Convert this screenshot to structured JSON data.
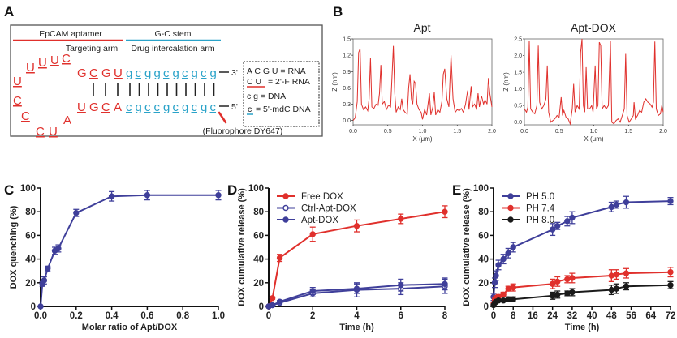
{
  "panel_labels": [
    "A",
    "B",
    "C",
    "D",
    "E"
  ],
  "panel_a": {
    "header_left": "EpCAM aptamer",
    "header_right": "G-C stem",
    "sub_left": "Targeting arm",
    "sub_right": "Drug intercalation arm",
    "loop_letters": [
      "U",
      "U",
      "U",
      "C",
      "U",
      "C",
      "C",
      "C",
      "U",
      "A"
    ],
    "top_stem_red": [
      "G",
      "C",
      "G",
      "U"
    ],
    "top_stem_blue": [
      "g",
      "c",
      "g",
      "g",
      "c",
      "g",
      "c",
      "g",
      "c",
      "g"
    ],
    "bottom_stem_red": [
      "U",
      "G",
      "C",
      "A"
    ],
    "bottom_stem_blue": [
      "c",
      "g",
      "c",
      "c",
      "g",
      "c",
      "g",
      "c",
      "g",
      "c"
    ],
    "end_top": "3'",
    "end_bottom": "5'",
    "fluorophore": "(Fluorophore DY647)",
    "legend": {
      "rna": "A C G U = RNA",
      "fprna_key": "C U",
      "fprna": "= 2'-F RNA",
      "dna": "c g = DNA",
      "mdc_key": "c",
      "mdc": "= 5'-mdC DNA"
    },
    "colors": {
      "rna": "#e0302c",
      "dna": "#2aa3c9"
    }
  },
  "chart_data": [
    {
      "id": "B-Apt",
      "type": "line",
      "title": "Apt",
      "xlabel": "X (μm)",
      "ylabel": "Z (nm)",
      "xlim": [
        0,
        2
      ],
      "ylim": [
        -0.08,
        1.5
      ],
      "xticks": [
        "0.0",
        "0.5",
        "1.0",
        "1.5",
        "2.0"
      ],
      "yticks": [
        "0.0",
        "0.3",
        "0.6",
        "0.9",
        "1.2",
        "1.5"
      ],
      "color": "#e0302c",
      "x": [
        0,
        0.03,
        0.06,
        0.08,
        0.1,
        0.12,
        0.15,
        0.18,
        0.21,
        0.23,
        0.25,
        0.27,
        0.3,
        0.33,
        0.36,
        0.38,
        0.4,
        0.42,
        0.45,
        0.48,
        0.51,
        0.54,
        0.56,
        0.58,
        0.6,
        0.62,
        0.65,
        0.68,
        0.7,
        0.72,
        0.75,
        0.78,
        0.8,
        0.82,
        0.84,
        0.86,
        0.88,
        0.9,
        0.92,
        0.95,
        0.98,
        1.0,
        1.03,
        1.06,
        1.08,
        1.1,
        1.12,
        1.15,
        1.17,
        1.19,
        1.22,
        1.25,
        1.28,
        1.3,
        1.32,
        1.35,
        1.38,
        1.41,
        1.44,
        1.47,
        1.5,
        1.53,
        1.56,
        1.59,
        1.62,
        1.65,
        1.67,
        1.7,
        1.72,
        1.75,
        1.78,
        1.8,
        1.82,
        1.85,
        1.88,
        1.9,
        1.93,
        1.95,
        1.97,
        2.0
      ],
      "y": [
        0,
        0.05,
        0.35,
        1.25,
        1.32,
        0.3,
        0.2,
        0.25,
        0.18,
        0.4,
        1.15,
        0.25,
        0.22,
        0.3,
        0.28,
        0.5,
        1.02,
        0.3,
        0.35,
        0.2,
        0.28,
        0.25,
        0.8,
        1.37,
        0.5,
        0.15,
        0.25,
        0.2,
        0.4,
        0.2,
        0.15,
        0.12,
        0.6,
        0.85,
        0.4,
        0.3,
        0.72,
        0.68,
        0.3,
        0.2,
        0.15,
        0.02,
        0.2,
        0.1,
        0.3,
        0.5,
        0.1,
        0.25,
        0.52,
        0.1,
        0.2,
        0.15,
        0.35,
        0.85,
        0.95,
        0.4,
        0.25,
        1.2,
        0.4,
        0.15,
        0.2,
        0.18,
        0.22,
        0.15,
        0.3,
        0.55,
        0.2,
        0.63,
        0.25,
        0.3,
        0.2,
        0.5,
        0.25,
        0.45,
        0.3,
        0.38,
        0.3,
        0.78,
        0.5,
        0.25
      ]
    },
    {
      "id": "B-AptDOX",
      "type": "line",
      "title": "Apt-DOX",
      "xlabel": "X (μm)",
      "ylabel": "Z (nm)",
      "xlim": [
        0,
        2
      ],
      "ylim": [
        -0.08,
        2.5
      ],
      "xticks": [
        "0.0",
        "0.5",
        "1.0",
        "1.5",
        "2.0"
      ],
      "yticks": [
        "0.0",
        "0.5",
        "1.0",
        "1.5",
        "2.0",
        "2.5"
      ],
      "color": "#e0302c",
      "x": [
        0,
        0.03,
        0.05,
        0.07,
        0.09,
        0.12,
        0.15,
        0.18,
        0.2,
        0.22,
        0.25,
        0.28,
        0.31,
        0.33,
        0.35,
        0.38,
        0.41,
        0.44,
        0.47,
        0.5,
        0.53,
        0.55,
        0.57,
        0.6,
        0.63,
        0.66,
        0.69,
        0.71,
        0.73,
        0.76,
        0.79,
        0.81,
        0.83,
        0.85,
        0.87,
        0.89,
        0.91,
        0.94,
        0.97,
        0.99,
        1.02,
        1.04,
        1.06,
        1.08,
        1.1,
        1.12,
        1.15,
        1.18,
        1.21,
        1.24,
        1.26,
        1.29,
        1.32,
        1.35,
        1.38,
        1.41,
        1.44,
        1.46,
        1.48,
        1.51,
        1.54,
        1.57,
        1.58,
        1.6,
        1.63,
        1.66,
        1.69,
        1.72,
        1.75,
        1.78,
        1.81,
        1.84,
        1.86,
        1.88,
        1.9,
        1.93,
        1.96,
        1.98,
        2.0
      ],
      "y": [
        0.4,
        0.3,
        0.45,
        2.45,
        0.4,
        0.3,
        0.25,
        0.5,
        2.3,
        0.6,
        0.4,
        0.5,
        0.7,
        1.7,
        0.3,
        0,
        0.05,
        0.1,
        0.2,
        0.15,
        0.75,
        0.2,
        0.35,
        0.15,
        0.1,
        -0.05,
        0.4,
        1.15,
        0.3,
        0.5,
        0.4,
        2.1,
        2.5,
        0.5,
        0.3,
        1.65,
        0.4,
        0.4,
        0.5,
        0.3,
        1.7,
        0.4,
        0.5,
        2.4,
        2.3,
        0.4,
        0.5,
        0.4,
        0.5,
        2.45,
        0,
        -0.05,
        0.05,
        0.1,
        0,
        0.2,
        0.4,
        2.05,
        0.2,
        0,
        0.1,
        0.2,
        0.6,
        0.1,
        0.2,
        0.35,
        0.3,
        0.6,
        0.7,
        0.6,
        0.55,
        0.45,
        0.6,
        2.42,
        0.4,
        0.2,
        0.25,
        0.5,
        0.3
      ]
    },
    {
      "id": "C",
      "type": "line",
      "xlabel": "Molar ratio of Apt/DOX",
      "ylabel": "DOX quenching (%)",
      "xlim": [
        0,
        1
      ],
      "ylim": [
        0,
        100
      ],
      "xticks": [
        "0.0",
        "0.2",
        "0.4",
        "0.6",
        "0.8",
        "1.0"
      ],
      "yticks": [
        "0",
        "20",
        "40",
        "60",
        "80",
        "100"
      ],
      "series": [
        {
          "name": "Apt/DOX",
          "color": "#3f3f9a",
          "marker": "filled",
          "x": [
            0,
            0.01,
            0.02,
            0.04,
            0.08,
            0.1,
            0.2,
            0.4,
            0.6,
            1.0
          ],
          "y": [
            0,
            19,
            22,
            32,
            47,
            49,
            79,
            93,
            94,
            94
          ],
          "err": [
            0,
            2,
            3,
            2,
            3,
            3,
            3,
            4,
            4,
            4
          ]
        }
      ]
    },
    {
      "id": "D",
      "type": "line",
      "xlabel": "Time (h)",
      "ylabel": "DOX cumulative release (%)",
      "xlim": [
        0,
        8
      ],
      "ylim": [
        0,
        100
      ],
      "legend": "top-left",
      "xticks": [
        "0",
        "2",
        "4",
        "6",
        "8"
      ],
      "yticks": [
        "0",
        "20",
        "40",
        "60",
        "80",
        "100"
      ],
      "series": [
        {
          "name": "Free DOX",
          "color": "#e0302c",
          "marker": "filled",
          "x": [
            0,
            0.17,
            0.5,
            2,
            4,
            6,
            8
          ],
          "y": [
            0,
            7,
            41,
            61,
            68,
            74,
            80
          ],
          "err": [
            0,
            1,
            3,
            6,
            5,
            4,
            5
          ]
        },
        {
          "name": "Ctrl-Apt-DOX",
          "color": "#3f3f9a",
          "marker": "open",
          "x": [
            0,
            0.17,
            0.5,
            2,
            4,
            6,
            8
          ],
          "y": [
            0,
            1,
            3,
            11,
            14,
            15,
            17
          ],
          "err": [
            0,
            1,
            1,
            3,
            6,
            5,
            6
          ]
        },
        {
          "name": "Apt-DOX",
          "color": "#3f3f9a",
          "marker": "filled",
          "x": [
            0,
            0.17,
            0.5,
            2,
            4,
            6,
            8
          ],
          "y": [
            0,
            1,
            4,
            13,
            15,
            18,
            19
          ],
          "err": [
            0,
            1,
            1,
            3,
            4,
            5,
            5
          ]
        }
      ]
    },
    {
      "id": "E",
      "type": "line",
      "xlabel": "Time (h)",
      "ylabel": "DOX cumulative release (%)",
      "xlim": [
        0,
        72
      ],
      "ylim": [
        0,
        100
      ],
      "legend": "top-left",
      "xticks": [
        "0",
        "8",
        "16",
        "24",
        "32",
        "40",
        "48",
        "56",
        "64",
        "72"
      ],
      "yticks": [
        "0",
        "20",
        "40",
        "60",
        "80",
        "100"
      ],
      "series": [
        {
          "name": "PH 5.0",
          "color": "#3f3f9a",
          "marker": "filled",
          "x": [
            0,
            0.5,
            1,
            2,
            4,
            6,
            8,
            24,
            26,
            30,
            32,
            48,
            50,
            54,
            72
          ],
          "y": [
            8,
            20,
            26,
            35,
            40,
            45,
            50,
            65,
            68,
            72,
            75,
            84,
            86,
            88,
            89
          ],
          "err": [
            3,
            4,
            4,
            4,
            4,
            4,
            4,
            5,
            3,
            4,
            5,
            4,
            3,
            5,
            3
          ]
        },
        {
          "name": "PH 7.4",
          "color": "#e0302c",
          "marker": "filled",
          "x": [
            0,
            0.5,
            1,
            2,
            4,
            6,
            8,
            24,
            26,
            30,
            32,
            48,
            50,
            54,
            72
          ],
          "y": [
            2,
            5,
            7,
            8,
            10,
            15,
            16,
            19,
            21,
            23,
            24,
            26,
            27,
            28,
            29
          ],
          "err": [
            1,
            2,
            2,
            2,
            2,
            2,
            3,
            4,
            4,
            3,
            4,
            5,
            4,
            4,
            4
          ]
        },
        {
          "name": "PH 8.0",
          "color": "#1a1a1a",
          "marker": "filled",
          "x": [
            0,
            0.5,
            1,
            2,
            4,
            6,
            8,
            24,
            26,
            30,
            32,
            48,
            50,
            54,
            72
          ],
          "y": [
            1,
            3,
            4,
            5,
            5,
            6,
            6,
            9,
            10,
            11,
            12,
            14,
            15,
            17,
            18
          ],
          "err": [
            1,
            1,
            1,
            1,
            1,
            2,
            2,
            3,
            3,
            2,
            3,
            4,
            4,
            3,
            3
          ]
        }
      ]
    }
  ]
}
